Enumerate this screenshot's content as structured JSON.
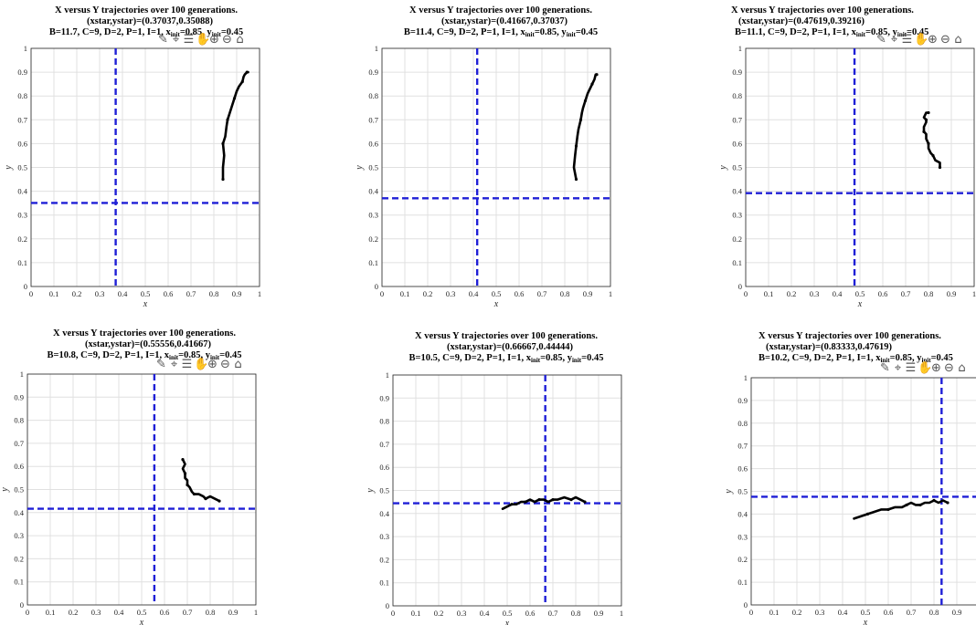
{
  "toolbar_icons": [
    "brush-icon",
    "datatip-icon",
    "legend-icon",
    "pan-hand-icon",
    "zoom-in-icon",
    "zoom-out-icon",
    "home-icon"
  ],
  "chart_data": [
    {
      "type": "line",
      "title_line1": "X versus Y trajectories over 100 generations.",
      "title_line2": "(xstar,ystar)=(0.37037,0.35088)",
      "params": "B=11.7, C=9, D=2, P=1, I=1, x",
      "xinit_sub": "init",
      "xinit_val": "=0.85, y",
      "yinit_sub": "init",
      "yinit_val": "=0.45",
      "xlabel": "x",
      "ylabel": "y",
      "xlim": [
        0,
        1
      ],
      "ylim": [
        0,
        1
      ],
      "ticks": [
        "0",
        "0.1",
        "0.2",
        "0.3",
        "0.4",
        "0.5",
        "0.6",
        "0.7",
        "0.8",
        "0.9",
        "1"
      ],
      "xstar": 0.37037,
      "ystar": 0.35088,
      "grid": true,
      "trajectory": {
        "x": [
          0.84,
          0.84,
          0.845,
          0.84,
          0.85,
          0.855,
          0.86,
          0.87,
          0.88,
          0.89,
          0.9,
          0.91,
          0.925,
          0.93,
          0.935,
          0.945,
          0.95
        ],
        "y": [
          0.45,
          0.5,
          0.55,
          0.6,
          0.63,
          0.67,
          0.7,
          0.73,
          0.76,
          0.79,
          0.82,
          0.84,
          0.86,
          0.88,
          0.89,
          0.9,
          0.9
        ]
      }
    },
    {
      "type": "line",
      "title_line1": "X versus Y trajectories over 100 generations.",
      "title_line2": "(xstar,ystar)=(0.41667,0.37037)",
      "params": "B=11.4, C=9, D=2, P=1, I=1, x",
      "xinit_sub": "init",
      "xinit_val": "=0.85, y",
      "yinit_sub": "init",
      "yinit_val": "=0.45",
      "xlabel": "x",
      "ylabel": "y",
      "xlim": [
        0,
        1
      ],
      "ylim": [
        0,
        1
      ],
      "ticks": [
        "0",
        "0.1",
        "0.2",
        "0.3",
        "0.4",
        "0.5",
        "0.6",
        "0.7",
        "0.8",
        "0.9",
        "1"
      ],
      "xstar": 0.41667,
      "ystar": 0.37037,
      "grid": true,
      "trajectory": {
        "x": [
          0.85,
          0.84,
          0.845,
          0.85,
          0.855,
          0.86,
          0.87,
          0.875,
          0.88,
          0.89,
          0.9,
          0.91,
          0.92,
          0.93,
          0.935,
          0.94
        ],
        "y": [
          0.45,
          0.5,
          0.55,
          0.59,
          0.63,
          0.66,
          0.7,
          0.73,
          0.75,
          0.78,
          0.81,
          0.83,
          0.85,
          0.87,
          0.89,
          0.89
        ]
      }
    },
    {
      "type": "line",
      "title_line1": "X versus Y trajectories over 100 generations.",
      "title_line2": "(xstar,ystar)=(0.47619,0.39216)",
      "params": "B=11.1, C=9, D=2, P=1, I=1, x",
      "xinit_sub": "init",
      "xinit_val": "=0.85, y",
      "yinit_sub": "init",
      "yinit_val": "=0.45",
      "xlabel": "x",
      "ylabel": "y",
      "xlim": [
        0,
        1
      ],
      "ylim": [
        0,
        1
      ],
      "ticks": [
        "0",
        "0.1",
        "0.2",
        "0.3",
        "0.4",
        "0.5",
        "0.6",
        "0.7",
        "0.8",
        "0.9",
        "1"
      ],
      "xstar": 0.47619,
      "ystar": 0.39216,
      "grid": true,
      "trajectory": {
        "x": [
          0.85,
          0.85,
          0.83,
          0.82,
          0.81,
          0.8,
          0.8,
          0.79,
          0.79,
          0.78,
          0.78,
          0.79,
          0.79,
          0.78,
          0.79,
          0.8
        ],
        "y": [
          0.5,
          0.52,
          0.53,
          0.55,
          0.56,
          0.58,
          0.6,
          0.62,
          0.64,
          0.65,
          0.67,
          0.69,
          0.7,
          0.71,
          0.73,
          0.73
        ]
      }
    },
    {
      "type": "line",
      "title_line1": "X versus Y trajectories over 100 generations.",
      "title_line2": "(xstar,ystar)=(0.55556,0.41667)",
      "params": "B=10.8, C=9, D=2, P=1, I=1, x",
      "xinit_sub": "init",
      "xinit_val": "=0.85, y",
      "yinit_sub": "init",
      "yinit_val": "=0.45",
      "xlabel": "x",
      "ylabel": "y",
      "xlim": [
        0,
        1
      ],
      "ylim": [
        0,
        1
      ],
      "ticks": [
        "0",
        "0.1",
        "0.2",
        "0.3",
        "0.4",
        "0.5",
        "0.6",
        "0.7",
        "0.8",
        "0.9",
        "1"
      ],
      "xstar": 0.55556,
      "ystar": 0.41667,
      "grid": true,
      "trajectory": {
        "x": [
          0.84,
          0.82,
          0.8,
          0.78,
          0.77,
          0.75,
          0.73,
          0.72,
          0.71,
          0.7,
          0.7,
          0.69,
          0.69,
          0.68,
          0.69,
          0.68
        ],
        "y": [
          0.45,
          0.46,
          0.47,
          0.46,
          0.47,
          0.48,
          0.48,
          0.49,
          0.51,
          0.52,
          0.54,
          0.55,
          0.57,
          0.59,
          0.61,
          0.63
        ]
      }
    },
    {
      "type": "line",
      "title_line1": "X versus Y trajectories over 100 generations.",
      "title_line2": "(xstar,ystar)=(0.66667,0.44444)",
      "params": "B=10.5, C=9, D=2, P=1, I=1, x",
      "xinit_sub": "init",
      "xinit_val": "=0.85, y",
      "yinit_sub": "init",
      "yinit_val": "=0.45",
      "xlabel": "x",
      "ylabel": "y",
      "xlim": [
        0,
        1
      ],
      "ylim": [
        0,
        1
      ],
      "ticks": [
        "0",
        "0.1",
        "0.2",
        "0.3",
        "0.4",
        "0.5",
        "0.6",
        "0.7",
        "0.8",
        "0.9",
        "1"
      ],
      "xstar": 0.66667,
      "ystar": 0.44444,
      "grid": true,
      "trajectory": {
        "x": [
          0.84,
          0.82,
          0.8,
          0.78,
          0.75,
          0.72,
          0.7,
          0.68,
          0.66,
          0.64,
          0.62,
          0.6,
          0.58,
          0.56,
          0.54,
          0.52,
          0.5,
          0.48
        ],
        "y": [
          0.45,
          0.46,
          0.47,
          0.46,
          0.47,
          0.46,
          0.46,
          0.45,
          0.46,
          0.46,
          0.45,
          0.46,
          0.45,
          0.45,
          0.44,
          0.44,
          0.43,
          0.42
        ]
      }
    },
    {
      "type": "line",
      "title_line1": "X versus Y trajectories over 100 generations.",
      "title_line2": "(xstar,ystar)=(0.83333,0.47619)",
      "params": "B=10.2, C=9, D=2, P=1, I=1, x",
      "xinit_sub": "init",
      "xinit_val": "=0.85, y",
      "yinit_sub": "init",
      "yinit_val": "=0.45",
      "xlabel": "x",
      "ylabel": "y",
      "xlim": [
        0,
        1
      ],
      "ylim": [
        0,
        1
      ],
      "ticks": [
        "0",
        "0.1",
        "0.2",
        "0.3",
        "0.4",
        "0.5",
        "0.6",
        "0.7",
        "0.8",
        "0.9",
        "1"
      ],
      "xstar": 0.83333,
      "ystar": 0.47619,
      "grid": true,
      "trajectory": {
        "x": [
          0.86,
          0.84,
          0.82,
          0.8,
          0.78,
          0.76,
          0.74,
          0.72,
          0.7,
          0.68,
          0.66,
          0.63,
          0.6,
          0.57,
          0.54,
          0.51,
          0.48,
          0.45
        ],
        "y": [
          0.45,
          0.46,
          0.45,
          0.46,
          0.45,
          0.45,
          0.44,
          0.44,
          0.45,
          0.44,
          0.43,
          0.43,
          0.42,
          0.42,
          0.41,
          0.4,
          0.39,
          0.38
        ]
      }
    }
  ]
}
